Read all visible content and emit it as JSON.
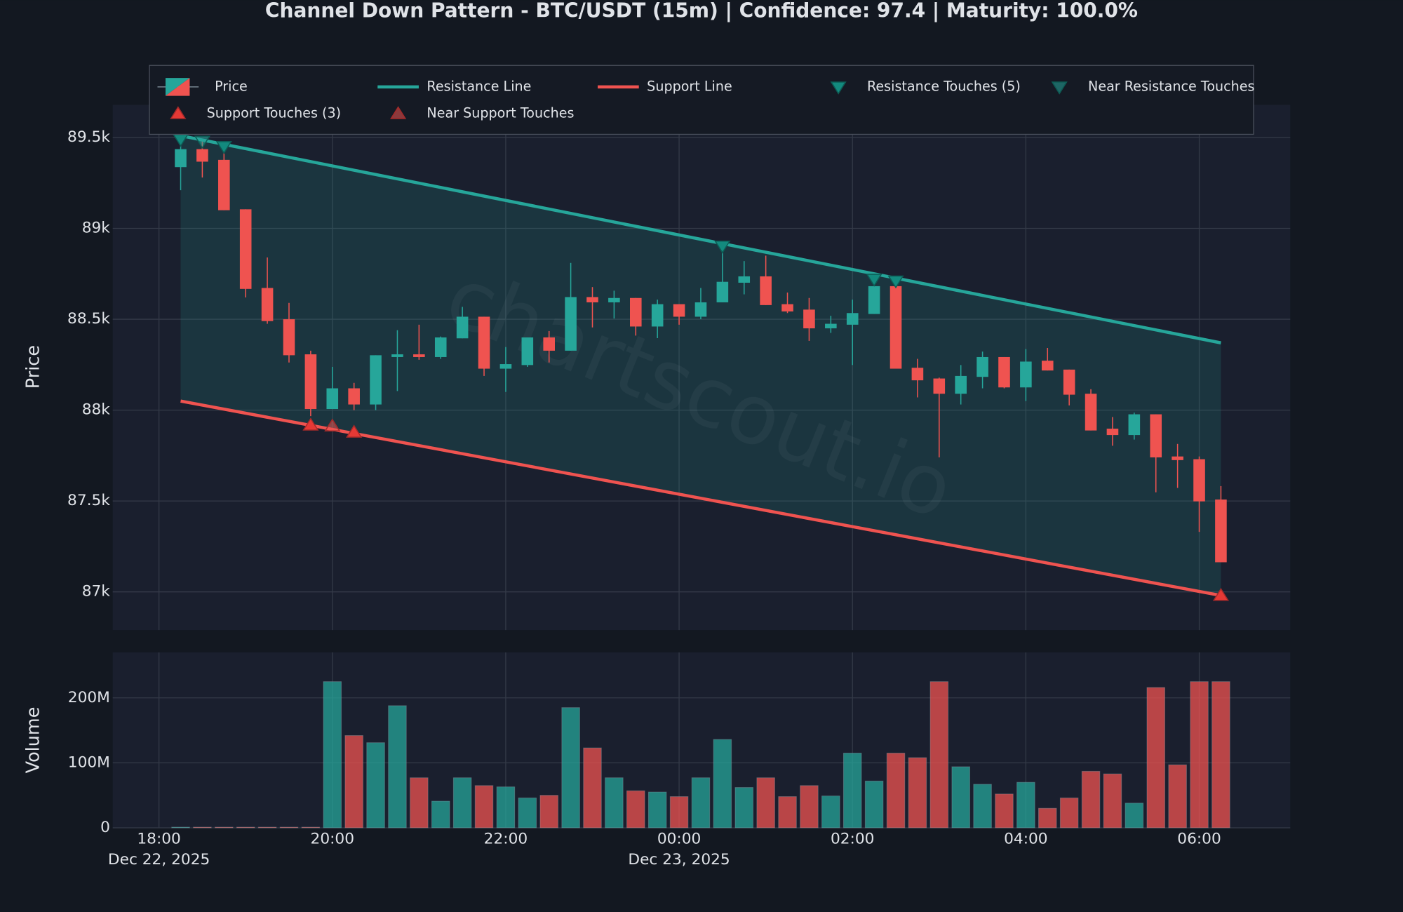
{
  "chart_data": {
    "type": "candlestick",
    "title": "Channel Down Pattern - BTC/USDT (15m) | Confidence: 97.4 | Maturity: 100.0%",
    "watermark": "chartscout.io",
    "grid": true,
    "legend": "upper center",
    "x": [
      "2025-12-22T18:15",
      "2025-12-22T18:30",
      "2025-12-22T18:45",
      "2025-12-22T19:00",
      "2025-12-22T19:15",
      "2025-12-22T19:30",
      "2025-12-22T19:45",
      "2025-12-22T20:00",
      "2025-12-22T20:15",
      "2025-12-22T20:30",
      "2025-12-22T20:45",
      "2025-12-22T21:00",
      "2025-12-22T21:15",
      "2025-12-22T21:30",
      "2025-12-22T21:45",
      "2025-12-22T22:00",
      "2025-12-22T22:15",
      "2025-12-22T22:30",
      "2025-12-22T22:45",
      "2025-12-22T23:00",
      "2025-12-22T23:15",
      "2025-12-22T23:30",
      "2025-12-22T23:45",
      "2025-12-23T00:00",
      "2025-12-23T00:15",
      "2025-12-23T00:30",
      "2025-12-23T00:45",
      "2025-12-23T01:00",
      "2025-12-23T01:15",
      "2025-12-23T01:30",
      "2025-12-23T01:45",
      "2025-12-23T02:00",
      "2025-12-23T02:15",
      "2025-12-23T02:30",
      "2025-12-23T02:45",
      "2025-12-23T03:00",
      "2025-12-23T03:15",
      "2025-12-23T03:30",
      "2025-12-23T03:45",
      "2025-12-23T04:00",
      "2025-12-23T04:15",
      "2025-12-23T04:30",
      "2025-12-23T04:45",
      "2025-12-23T05:00",
      "2025-12-23T05:15",
      "2025-12-23T05:30",
      "2025-12-23T05:45",
      "2025-12-23T06:00",
      "2025-12-23T06:15"
    ],
    "xlim": [
      "2025-12-22T17:28",
      "2025-12-23T07:03"
    ],
    "xticks": [
      {
        "value": "2025-12-22T18:00",
        "label": "18:00",
        "date_label": "Dec 22, 2025"
      },
      {
        "value": "2025-12-22T20:00",
        "label": "20:00"
      },
      {
        "value": "2025-12-22T22:00",
        "label": "22:00"
      },
      {
        "value": "2025-12-23T00:00",
        "label": "00:00",
        "date_label": "Dec 23, 2025"
      },
      {
        "value": "2025-12-23T02:00",
        "label": "02:00"
      },
      {
        "value": "2025-12-23T04:00",
        "label": "04:00"
      },
      {
        "value": "2025-12-23T06:00",
        "label": "06:00"
      }
    ],
    "price": {
      "name": "Price",
      "ylabel": "Price",
      "up_color": "#26a69a",
      "down_color": "#ef5350",
      "ylim": [
        86790,
        89680
      ],
      "yticks": [
        {
          "value": 87000,
          "label": "87k"
        },
        {
          "value": 87500,
          "label": "87.5k"
        },
        {
          "value": 88000,
          "label": "88k"
        },
        {
          "value": 88500,
          "label": "88.5k"
        },
        {
          "value": 89000,
          "label": "89k"
        },
        {
          "value": 89500,
          "label": "89.5k"
        }
      ],
      "open": [
        89337,
        89436,
        89377,
        89105,
        88672,
        88500,
        88307,
        88006,
        88120,
        88031,
        88292,
        88307,
        88292,
        88395,
        88514,
        88228,
        88248,
        88400,
        88327,
        88622,
        88593,
        88617,
        88460,
        88583,
        88514,
        88593,
        88701,
        88736,
        88583,
        88553,
        88450,
        88470,
        88529,
        88682,
        88233,
        88174,
        88090,
        88183,
        88292,
        88125,
        88272,
        88223,
        88090,
        87898,
        87863,
        87977,
        87745,
        87730,
        87508
      ],
      "high": [
        89510,
        89485,
        89420,
        89105,
        88840,
        88590,
        88327,
        88238,
        88150,
        88302,
        88440,
        88470,
        88405,
        88568,
        88514,
        88347,
        88400,
        88435,
        88810,
        88677,
        88657,
        88617,
        88608,
        88583,
        88672,
        88913,
        88820,
        88850,
        88647,
        88617,
        88519,
        88608,
        88731,
        88731,
        88282,
        88179,
        88248,
        88322,
        88292,
        88336,
        88342,
        88223,
        88115,
        87962,
        87986,
        87977,
        87814,
        87745,
        87582
      ],
      "low": [
        89210,
        89280,
        89100,
        88620,
        88475,
        88262,
        87967,
        88006,
        88000,
        88000,
        88105,
        88277,
        88282,
        88395,
        88188,
        88100,
        88238,
        88262,
        88327,
        88455,
        88504,
        88410,
        88396,
        88470,
        88500,
        88593,
        88637,
        88578,
        88534,
        88381,
        88425,
        88248,
        88529,
        88228,
        88070,
        87740,
        88031,
        88120,
        88120,
        88050,
        88218,
        88026,
        87888,
        87804,
        87838,
        87548,
        87572,
        87330,
        87163
      ],
      "close": [
        89436,
        89367,
        89100,
        88667,
        88490,
        88302,
        88006,
        88120,
        88031,
        88302,
        88307,
        88292,
        88400,
        88514,
        88228,
        88253,
        88400,
        88327,
        88622,
        88593,
        88617,
        88460,
        88583,
        88514,
        88593,
        88706,
        88736,
        88578,
        88543,
        88450,
        88475,
        88534,
        88682,
        88228,
        88164,
        88090,
        88188,
        88292,
        88125,
        88267,
        88218,
        88085,
        87888,
        87863,
        87977,
        87740,
        87725,
        87498,
        87163
      ]
    },
    "volume": {
      "ylabel": "Volume",
      "ylim": [
        0,
        270000000
      ],
      "yticks": [
        0,
        {
          "value": 100000000,
          "label": "100M"
        },
        {
          "value": 200000000,
          "label": "200M"
        }
      ],
      "values": [
        1000000,
        1000000,
        1000000,
        1000000,
        1000000,
        1000000,
        1000000,
        225000000,
        142000000,
        131000000,
        188000000,
        77000000,
        41000000,
        77000000,
        65000000,
        63000000,
        46000000,
        50000000,
        185000000,
        123000000,
        77000000,
        57000000,
        55000000,
        48000000,
        77000000,
        136000000,
        62000000,
        77000000,
        48000000,
        65000000,
        49000000,
        115000000,
        72000000,
        115000000,
        108000000,
        225000000,
        94000000,
        67000000,
        52000000,
        70000000,
        30000000,
        46000000,
        87000000,
        83000000,
        38000000,
        216000000,
        97000000,
        225000000,
        225000000
      ]
    },
    "lines": [
      {
        "name": "Resistance Line",
        "color": "#26a69a",
        "x": [
          "2025-12-22T18:15",
          "2025-12-23T06:15"
        ],
        "values": [
          89510,
          88370
        ]
      },
      {
        "name": "Support Line",
        "color": "#ef5350",
        "x": [
          "2025-12-22T18:15",
          "2025-12-23T06:15"
        ],
        "values": [
          88050,
          86980
        ]
      }
    ],
    "markers": [
      {
        "name": "Resistance Touches (5)",
        "color": "#138a7e",
        "shape": "down",
        "x": [
          "2025-12-22T18:15",
          "2025-12-22T18:45",
          "2025-12-23T00:30",
          "2025-12-23T02:15",
          "2025-12-23T02:30"
        ],
        "values": [
          89485,
          89446,
          88898,
          88716,
          88706
        ]
      },
      {
        "name": "Near Resistance Touches",
        "color": "#26a69a",
        "shape": "down",
        "near": true,
        "x": [
          "2025-12-22T18:30"
        ],
        "values": [
          89475
        ]
      },
      {
        "name": "Support Touches (3)",
        "color": "#e53935",
        "shape": "up",
        "x": [
          "2025-12-22T19:45",
          "2025-12-22T20:15",
          "2025-12-23T06:15"
        ],
        "values": [
          87922,
          87883,
          86985
        ]
      },
      {
        "name": "Near Support Touches",
        "color": "#ef5350",
        "shape": "up",
        "near": true,
        "x": [
          "2025-12-22T20:00"
        ],
        "values": [
          87917
        ]
      }
    ]
  }
}
